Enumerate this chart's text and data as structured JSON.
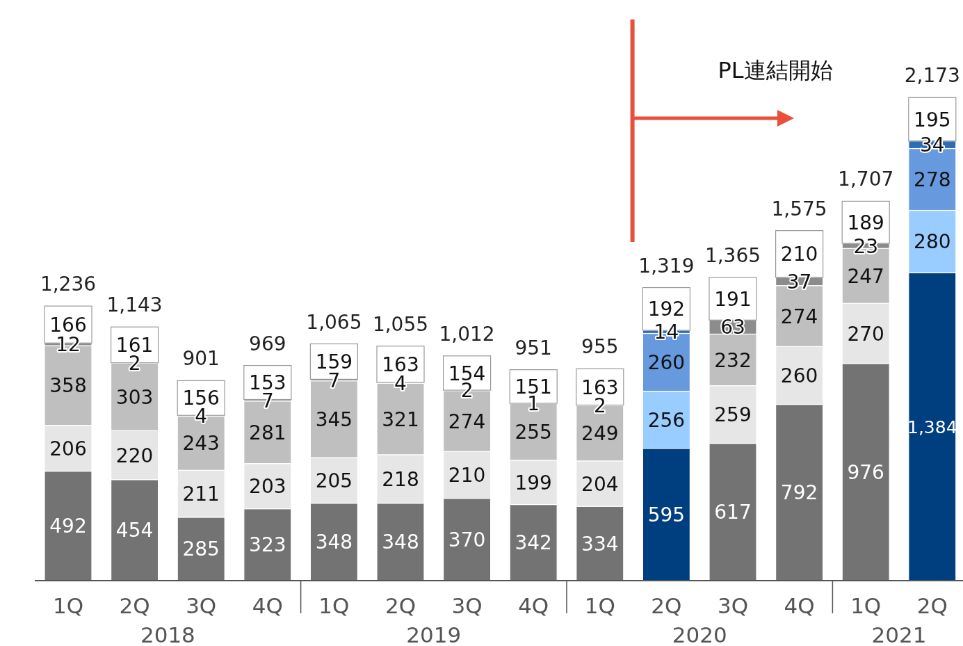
{
  "chart_data": {
    "type": "bar",
    "stacked": true,
    "data_labels": true,
    "categories": [
      "1Q",
      "2Q",
      "3Q",
      "4Q",
      "1Q",
      "2Q",
      "3Q",
      "4Q",
      "1Q",
      "2Q",
      "3Q",
      "4Q",
      "1Q",
      "2Q"
    ],
    "series": [
      {
        "colors": [
          "#737373",
          "#737373",
          "#737373",
          "#737373",
          "#737373",
          "#737373",
          "#737373",
          "#737373",
          "#737373",
          "#003f7f",
          "#737373",
          "#737373",
          "#737373",
          "#003f7f"
        ],
        "values": [
          492,
          454,
          285,
          323,
          348,
          348,
          370,
          342,
          334,
          595,
          617,
          792,
          976,
          1384
        ],
        "value_labels": [
          "492",
          "454",
          "285",
          "323",
          "348",
          "348",
          "370",
          "342",
          "334",
          "595",
          "617",
          "792",
          "976",
          "1,384"
        ]
      },
      {
        "colors": [
          "#e6e6e6",
          "#e6e6e6",
          "#e6e6e6",
          "#e6e6e6",
          "#e6e6e6",
          "#e6e6e6",
          "#e6e6e6",
          "#e6e6e6",
          "#e6e6e6",
          "#99ccff",
          "#e6e6e6",
          "#e6e6e6",
          "#e6e6e6",
          "#99ccff"
        ],
        "values": [
          206,
          220,
          211,
          203,
          205,
          218,
          210,
          199,
          204,
          256,
          259,
          260,
          270,
          280
        ]
      },
      {
        "colors": [
          "#bfbfbf",
          "#bfbfbf",
          "#bfbfbf",
          "#bfbfbf",
          "#bfbfbf",
          "#bfbfbf",
          "#bfbfbf",
          "#bfbfbf",
          "#bfbfbf",
          "#6699dd",
          "#bfbfbf",
          "#bfbfbf",
          "#bfbfbf",
          "#6699dd"
        ],
        "values": [
          358,
          303,
          243,
          281,
          345,
          321,
          274,
          255,
          249,
          260,
          232,
          274,
          247,
          278
        ]
      },
      {
        "colors": [
          "#8c8c8c",
          "#8c8c8c",
          "#8c8c8c",
          "#8c8c8c",
          "#8c8c8c",
          "#8c8c8c",
          "#8c8c8c",
          "#8c8c8c",
          "#8c8c8c",
          "#2e6db4",
          "#8c8c8c",
          "#8c8c8c",
          "#8c8c8c",
          "#2e6db4"
        ],
        "values": [
          12,
          2,
          4,
          7,
          7,
          4,
          2,
          1,
          2,
          14,
          63,
          37,
          23,
          34
        ]
      },
      {
        "colors": [
          "#ffffff",
          "#ffffff",
          "#ffffff",
          "#ffffff",
          "#ffffff",
          "#ffffff",
          "#ffffff",
          "#ffffff",
          "#ffffff",
          "#ffffff",
          "#ffffff",
          "#ffffff",
          "#ffffff",
          "#ffffff"
        ],
        "values": [
          166,
          161,
          156,
          153,
          159,
          163,
          154,
          151,
          163,
          192,
          191,
          210,
          189,
          195
        ]
      }
    ],
    "totals": [
      "1,236",
      "1,143",
      "901",
      "969",
      "1,065",
      "1,055",
      "1,012",
      "951",
      "955",
      "1,319",
      "1,365",
      "1,575",
      "1,707",
      "2,173"
    ],
    "annotations": [
      "PL連結開始",
      "2018",
      "2019",
      "2020",
      "2021"
    ]
  }
}
